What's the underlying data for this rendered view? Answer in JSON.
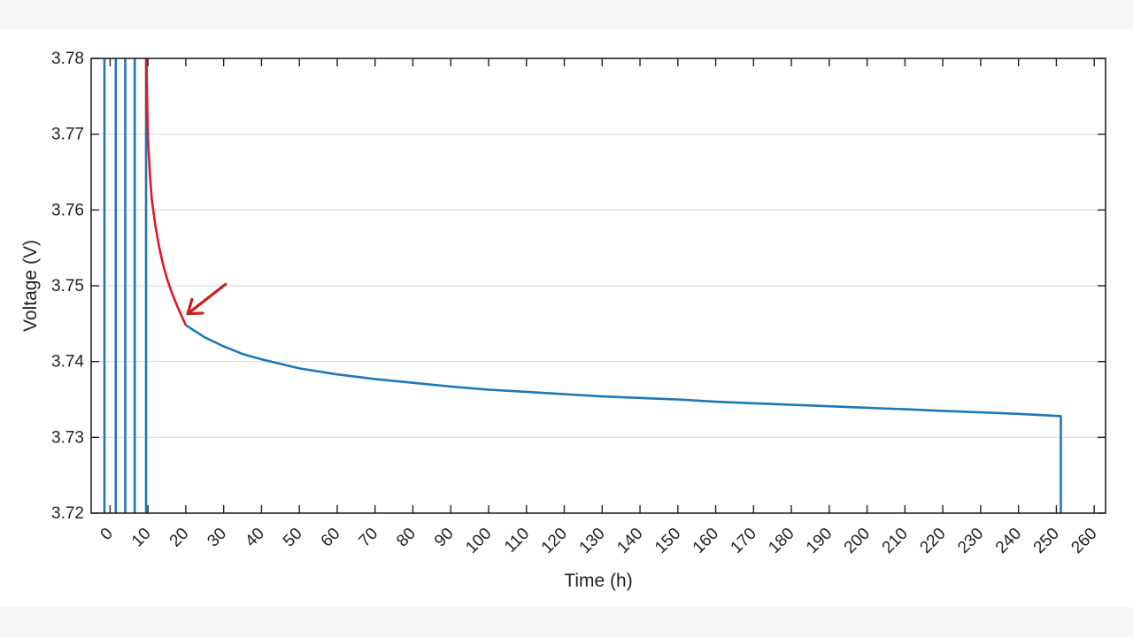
{
  "chart_data": {
    "type": "line",
    "title": "",
    "xlabel": "Time (h)",
    "ylabel": "Voltage (V)",
    "xlim": [
      -5,
      263
    ],
    "ylim": [
      3.72,
      3.78
    ],
    "grid": "horizontal",
    "x_ticks": [
      0,
      10,
      20,
      30,
      40,
      50,
      60,
      70,
      80,
      90,
      100,
      110,
      120,
      130,
      140,
      150,
      160,
      170,
      180,
      190,
      200,
      210,
      220,
      230,
      240,
      250,
      260
    ],
    "x_tick_labels": [
      "0",
      "10",
      "20",
      "30",
      "40",
      "50",
      "60",
      "70",
      "80",
      "90",
      "100",
      "110",
      "120",
      "130",
      "140",
      "150",
      "160",
      "170",
      "180",
      "190",
      "200",
      "210",
      "220",
      "230",
      "240",
      "250",
      "260"
    ],
    "y_ticks": [
      3.72,
      3.73,
      3.74,
      3.75,
      3.76,
      3.77,
      3.78
    ],
    "y_tick_labels": [
      "3.72",
      "3.73",
      "3.74",
      "3.75",
      "3.76",
      "3.77",
      "3.78"
    ],
    "series": [
      {
        "color": "#1f77b4",
        "segments": [
          [
            [
              -1.5,
              3.72
            ],
            [
              -1.5,
              3.78
            ]
          ],
          [
            [
              1.5,
              3.72
            ],
            [
              1.5,
              3.78
            ]
          ],
          [
            [
              4.0,
              3.72
            ],
            [
              4.0,
              3.78
            ]
          ],
          [
            [
              6.5,
              3.72
            ],
            [
              6.5,
              3.78
            ]
          ],
          [
            [
              9.5,
              3.72
            ],
            [
              9.5,
              3.78
            ]
          ],
          [
            [
              20.0,
              3.7448
            ],
            [
              25,
              3.7432
            ],
            [
              30,
              3.742
            ],
            [
              35,
              3.741
            ],
            [
              40,
              3.7403
            ],
            [
              50,
              3.7391
            ],
            [
              60,
              3.7383
            ],
            [
              70,
              3.7377
            ],
            [
              80,
              3.7372
            ],
            [
              90,
              3.7367
            ],
            [
              100,
              3.7363
            ],
            [
              110,
              3.736
            ],
            [
              120,
              3.7357
            ],
            [
              130,
              3.7354
            ],
            [
              140,
              3.7352
            ],
            [
              150,
              3.735
            ],
            [
              160,
              3.7347
            ],
            [
              170,
              3.7345
            ],
            [
              180,
              3.7343
            ],
            [
              190,
              3.7341
            ],
            [
              200,
              3.7339
            ],
            [
              210,
              3.7337
            ],
            [
              220,
              3.7335
            ],
            [
              230,
              3.7333
            ],
            [
              240,
              3.7331
            ],
            [
              251.2,
              3.7328
            ],
            [
              251.2,
              3.72
            ]
          ]
        ]
      },
      {
        "color": "#e0162b",
        "segments": [
          [
            [
              9.6,
              3.78
            ],
            [
              9.8,
              3.774
            ],
            [
              10.0,
              3.7695
            ],
            [
              10.5,
              3.7648
            ],
            [
              11.0,
              3.7615
            ],
            [
              12.0,
              3.7578
            ],
            [
              13.0,
              3.755
            ],
            [
              14.0,
              3.7528
            ],
            [
              15.0,
              3.751
            ],
            [
              16.0,
              3.7495
            ],
            [
              17.0,
              3.7482
            ],
            [
              18.0,
              3.747
            ],
            [
              19.0,
              3.7459
            ],
            [
              20.0,
              3.7448
            ]
          ]
        ]
      }
    ],
    "annotations": [
      {
        "type": "arrow",
        "color": "#cc1f1a",
        "from": [
          30.5,
          3.7502
        ],
        "to": [
          20.5,
          3.7463
        ]
      }
    ]
  }
}
